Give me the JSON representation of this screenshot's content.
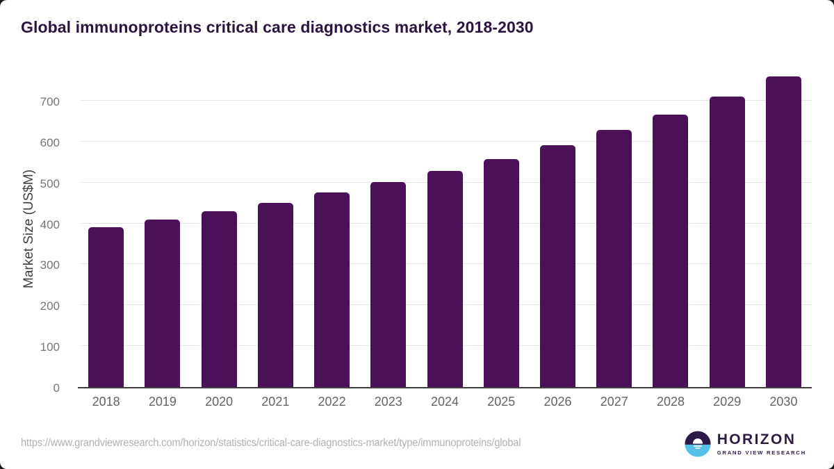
{
  "title": "Global immunoproteins critical care diagnostics market, 2018-2030",
  "source_url": "https://www.grandviewresearch.com/horizon/statistics/critical-care-diagnostics-market/type/immunoproteins/global",
  "logo": {
    "name": "HORIZON",
    "subtitle": "GRAND VIEW RESEARCH"
  },
  "colors": {
    "bar": "#4a1158",
    "title": "#2b1342",
    "grid": "#e6e6e6",
    "axis_line": "#3f3f3f",
    "y_tick": "#757575",
    "x_tick": "#636363",
    "source_text": "#b1b1b1",
    "logo_purple": "#2e1a47",
    "logo_blue": "#56c1e8"
  },
  "chart_data": {
    "type": "bar",
    "title": "Global immunoproteins critical care diagnostics market, 2018-2030",
    "categories": [
      "2018",
      "2019",
      "2020",
      "2021",
      "2022",
      "2023",
      "2024",
      "2025",
      "2026",
      "2027",
      "2028",
      "2029",
      "2030"
    ],
    "values": [
      391,
      410,
      430,
      451,
      475,
      501,
      529,
      558,
      592,
      628,
      667,
      710,
      760
    ],
    "xlabel": "",
    "ylabel": "Market Size (US$M)",
    "yticks": [
      0,
      100,
      200,
      300,
      400,
      500,
      600,
      700
    ],
    "ylim": [
      0,
      780
    ],
    "grid": true,
    "legend": false,
    "bar_color": "#4a1158"
  }
}
